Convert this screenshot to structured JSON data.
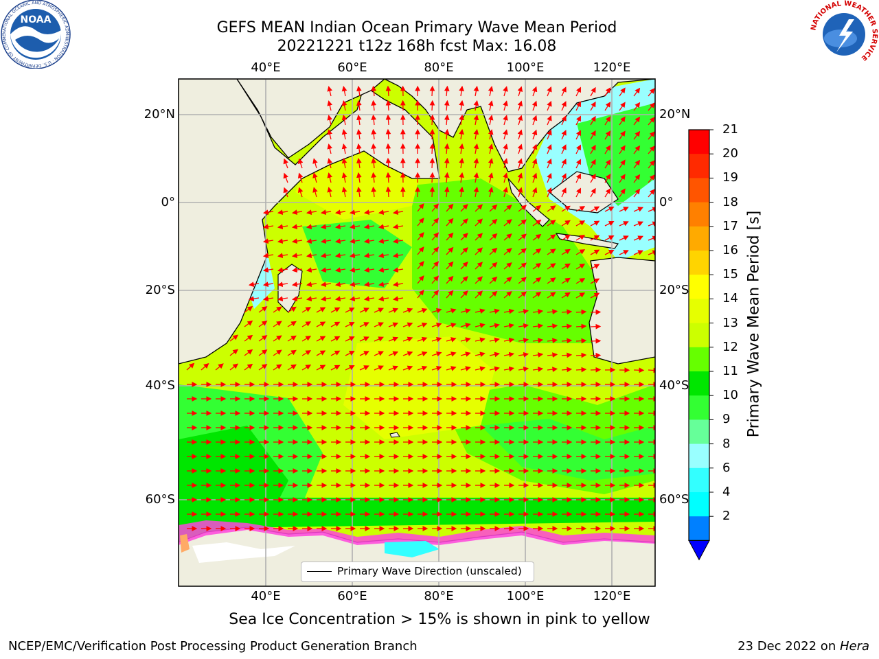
{
  "title": {
    "line1": "GEFS MEAN Indian Ocean Primary Wave Mean Period",
    "line2": "20221221 t12z 168h fcst   Max: 16.08"
  },
  "map": {
    "top_lon_labels": [
      "40°E",
      "60°E",
      "80°E",
      "100°E",
      "120°E"
    ],
    "bottom_lon_labels": [
      "40°E",
      "60°E",
      "80°E",
      "100°E",
      "120°E"
    ],
    "left_lat_labels": [
      "20°N",
      "0°",
      "20°S",
      "40°S",
      "60°S"
    ],
    "right_lat_labels": [
      "20°N",
      "0°",
      "20°S",
      "40°S",
      "60°S"
    ],
    "land_color": "#efeedf",
    "arrow_color": "#ff0000",
    "sea_ice_colors": [
      "#ff44dd",
      "#ffaa66",
      "#ffff66"
    ]
  },
  "legend": {
    "label": "Primary Wave Direction (unscaled)"
  },
  "colorbar": {
    "title": "Primary Wave Mean Period [s]",
    "ticks": [
      "21",
      "20",
      "19",
      "18",
      "17",
      "16",
      "15",
      "14",
      "13",
      "12",
      "11",
      "10",
      "9",
      "8",
      "6",
      "4",
      "2"
    ],
    "colors_top_to_bottom": [
      "#ff0000",
      "#ff2a00",
      "#ff5500",
      "#ff8000",
      "#ffaa00",
      "#ffd400",
      "#ffff00",
      "#e6ff00",
      "#ccff00",
      "#66ff00",
      "#00e600",
      "#33ff33",
      "#66ff99",
      "#99ffff",
      "#33ffff",
      "#00ffff",
      "#0080ff"
    ],
    "extend_color": "#0000ff"
  },
  "caption": "Sea Ice Concentration > 15% is shown in pink to yellow",
  "footer": {
    "left": "NCEP/EMC/Verification Post Processing Product Generation Branch",
    "date": "23 Dec 2022 on ",
    "host": "Hera"
  },
  "logos": {
    "noaa": {
      "text": "NOAA",
      "ring_text": "NATIONAL OCEANIC AND ATMOSPHERIC ADMINISTRATION · U.S. DEPARTMENT OF COMMERCE"
    },
    "nws": {
      "ring_text": "NATIONAL WEATHER SERVICE"
    }
  }
}
